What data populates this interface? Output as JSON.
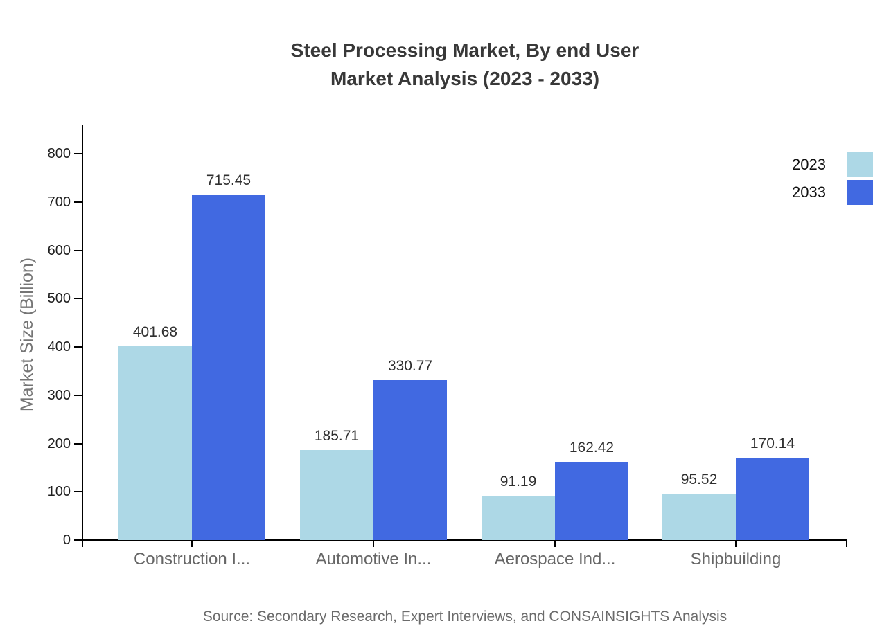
{
  "title": {
    "line1": "Steel Processing Market, By end User",
    "line2": "Market Analysis (2023 - 2033)"
  },
  "chart_data": {
    "type": "bar",
    "categories": [
      "Construction I...",
      "Automotive In...",
      "Aerospace Ind...",
      "Shipbuilding"
    ],
    "series": [
      {
        "name": "2023",
        "color": "#ADD8E6",
        "values": [
          401.68,
          185.71,
          91.19,
          95.52
        ]
      },
      {
        "name": "2033",
        "color": "#4169E1",
        "values": [
          715.45,
          330.77,
          162.42,
          170.14
        ]
      }
    ],
    "ylabel": "Market Size (Billion)",
    "xlabel": "",
    "ylim": [
      0,
      860
    ],
    "yticks": [
      0,
      100,
      200,
      300,
      400,
      500,
      600,
      700,
      800
    ],
    "grid": false,
    "legend_position": "top-right",
    "value_labels": true
  },
  "source": "Source: Secondary Research, Expert Interviews, and CONSAINSIGHTS Analysis",
  "colors": {
    "series_2023": "#ADD8E6",
    "series_2033": "#4169E1",
    "axis": "#000000",
    "title_text": "#383838",
    "tick_text": "#1f1f1f",
    "category_text": "#666666",
    "muted_text": "#6b6b6b"
  }
}
